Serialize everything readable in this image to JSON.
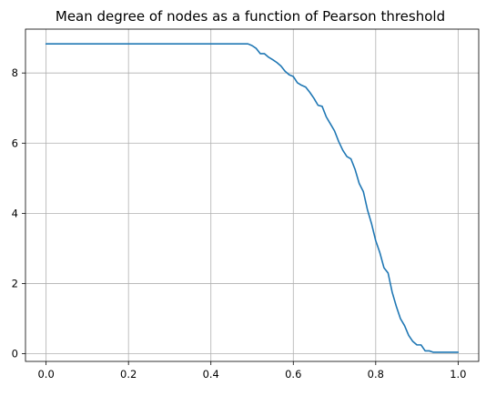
{
  "chart_data": {
    "type": "line",
    "title": "Mean degree of nodes as a function of Pearson threshold",
    "xlabel": "",
    "ylabel": "",
    "xlim": [
      -0.05,
      1.05
    ],
    "ylim": [
      -0.22,
      9.25
    ],
    "xticks": [
      0.0,
      0.2,
      0.4,
      0.6,
      0.8,
      1.0
    ],
    "xtick_labels": [
      "0.0",
      "0.2",
      "0.4",
      "0.6",
      "0.8",
      "1.0"
    ],
    "yticks": [
      0,
      2,
      4,
      6,
      8
    ],
    "ytick_labels": [
      "0",
      "2",
      "4",
      "6",
      "8"
    ],
    "grid": true,
    "line_color": "#1f77b4",
    "series": [
      {
        "x": [
          0.0,
          0.1,
          0.2,
          0.3,
          0.4,
          0.49,
          0.5,
          0.51,
          0.52,
          0.53,
          0.54,
          0.55,
          0.56,
          0.57,
          0.58,
          0.59,
          0.6,
          0.61,
          0.62,
          0.63,
          0.64,
          0.65,
          0.66,
          0.67,
          0.68,
          0.69,
          0.7,
          0.71,
          0.72,
          0.73,
          0.74,
          0.75,
          0.76,
          0.77,
          0.78,
          0.79,
          0.8,
          0.81,
          0.82,
          0.83,
          0.84,
          0.85,
          0.86,
          0.87,
          0.88,
          0.89,
          0.9,
          0.91,
          0.92,
          0.93,
          0.94,
          0.95,
          0.96,
          0.97,
          0.98,
          0.99,
          1.0
        ],
        "y": [
          8.83,
          8.83,
          8.83,
          8.83,
          8.83,
          8.83,
          8.78,
          8.7,
          8.55,
          8.55,
          8.45,
          8.38,
          8.3,
          8.2,
          8.05,
          7.95,
          7.9,
          7.72,
          7.65,
          7.6,
          7.45,
          7.28,
          7.08,
          7.05,
          6.75,
          6.55,
          6.35,
          6.05,
          5.8,
          5.62,
          5.55,
          5.25,
          4.85,
          4.62,
          4.1,
          3.7,
          3.22,
          2.88,
          2.45,
          2.3,
          1.75,
          1.35,
          1.0,
          0.8,
          0.52,
          0.35,
          0.25,
          0.25,
          0.08,
          0.08,
          0.04,
          0.04,
          0.04,
          0.04,
          0.04,
          0.04,
          0.04
        ]
      }
    ]
  }
}
